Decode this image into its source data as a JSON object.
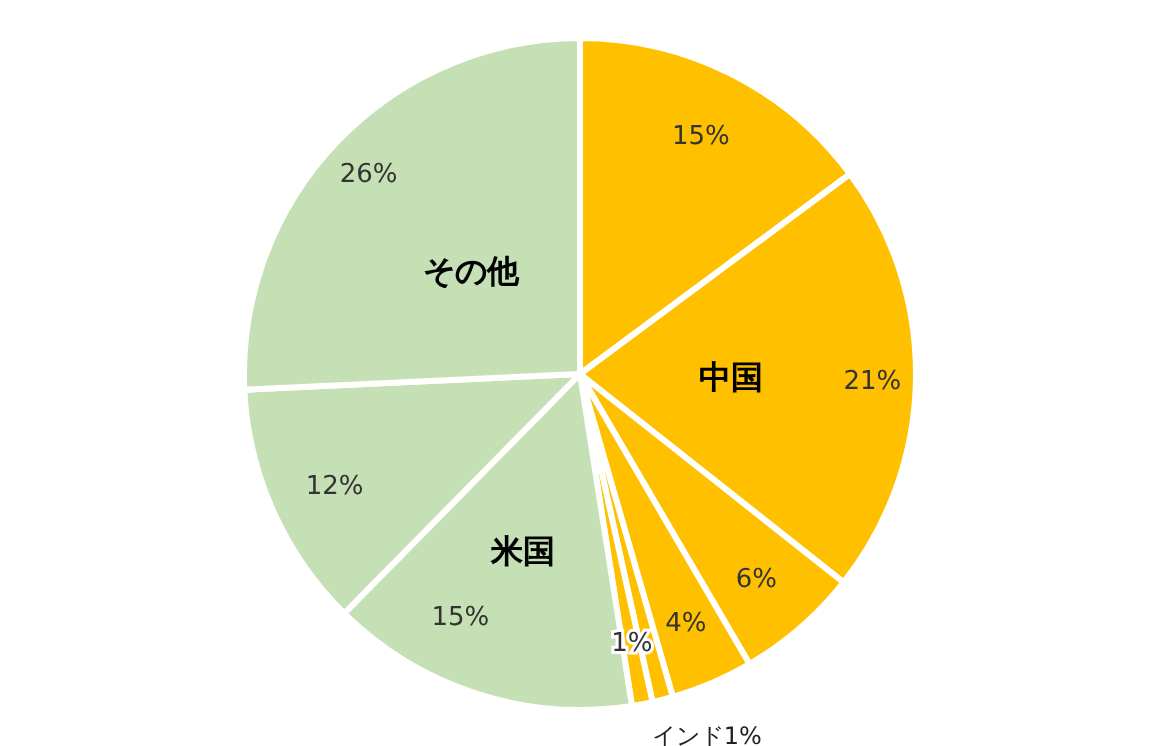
{
  "chart_data": {
    "type": "pie",
    "categories": [
      null,
      "中国",
      null,
      null,
      null,
      "インド",
      "米国",
      null,
      "その他"
    ],
    "values": [
      15,
      21,
      6,
      4,
      1,
      1,
      15,
      12,
      26
    ],
    "colors": [
      "#ffc000",
      "#ffc000",
      "#ffc000",
      "#ffc000",
      "#ffc000",
      "#ffc000",
      "#c5e0b4",
      "#c5e0b4",
      "#c5e0b4"
    ],
    "value_labels": [
      "15%",
      "21%",
      "6%",
      "4%",
      "1%",
      "1%",
      "15%",
      "12%",
      "26%"
    ]
  }
}
